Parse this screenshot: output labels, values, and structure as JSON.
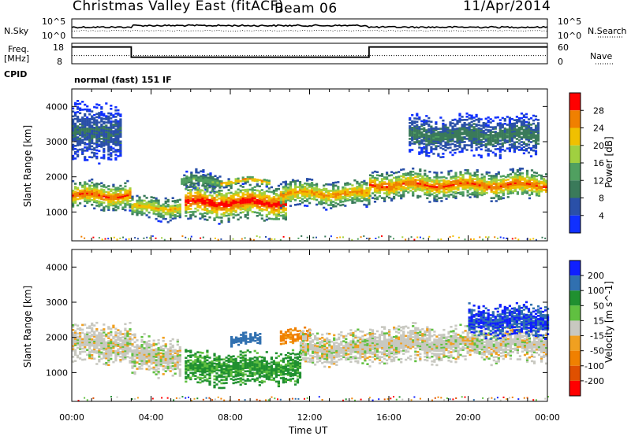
{
  "header": {
    "site_title": "Christmas Valley East (fitACF)",
    "beam": "Beam 06",
    "date": "11/Apr/2014"
  },
  "strip_panels": {
    "nsky_label": "N.Sky",
    "nsearch_label": "N.Search",
    "freq_label_line1": "Freq.",
    "freq_label_line2": "[MHz]",
    "nave_label": "Nave",
    "cpid_label": "CPID",
    "cpid_value": "normal (fast) 151 IF",
    "noise_ticks": [
      "10^5",
      "10^0"
    ],
    "freq_ticks": [
      "18",
      "8"
    ],
    "nave_ticks": [
      "60",
      "0"
    ],
    "freq_series": [
      {
        "t": 0.0,
        "f": 16.0
      },
      {
        "t": 3.0,
        "f": 16.0
      },
      {
        "t": 3.0,
        "f": 10.5
      },
      {
        "t": 15.0,
        "f": 10.5
      },
      {
        "t": 15.0,
        "f": 16.0
      },
      {
        "t": 24.0,
        "f": 16.0
      }
    ],
    "nave_series_level": 24
  },
  "time_axis": {
    "label": "Time UT",
    "ticks": [
      "00:00",
      "04:00",
      "08:00",
      "12:00",
      "16:00",
      "20:00",
      "00:00"
    ],
    "range_hours": [
      0,
      24
    ]
  },
  "chart_data": [
    {
      "type": "heatmap",
      "quantity": "Power",
      "ylabel": "Slant Range [km]",
      "xlabel": "Time UT",
      "ylim": [
        180,
        4500
      ],
      "yticks": [
        "1000",
        "2000",
        "3000",
        "4000"
      ],
      "colorbar_label": "Power [dB]",
      "colorbar_ticks": [
        "28",
        "24",
        "20",
        "16",
        "12",
        "8",
        "4"
      ],
      "colorbar_range": [
        0,
        30
      ],
      "colors": [
        "#1030ff",
        "#2a50a8",
        "#3a7a5a",
        "#50a060",
        "#a0d040",
        "#f0c000",
        "#f08000",
        "#ff0000"
      ],
      "scatter_bands": [
        {
          "t0": 0.0,
          "t1": 3.0,
          "r_center": 1500,
          "r_width": 450,
          "peak_db": 26
        },
        {
          "t0": 3.0,
          "t1": 5.5,
          "r_center": 1150,
          "r_width": 350,
          "peak_db": 22
        },
        {
          "t0": 5.5,
          "t1": 7.5,
          "r_center": 1900,
          "r_width": 300,
          "peak_db": 14
        },
        {
          "t0": 5.7,
          "t1": 10.8,
          "r_center": 1300,
          "r_width": 550,
          "peak_db": 29
        },
        {
          "t0": 7.5,
          "t1": 10.0,
          "r_center": 1900,
          "r_width": 120,
          "peak_db": 24
        },
        {
          "t0": 10.5,
          "t1": 15.0,
          "r_center": 1550,
          "r_width": 400,
          "peak_db": 24
        },
        {
          "t0": 15.0,
          "t1": 24.0,
          "r_center": 1800,
          "r_width": 450,
          "peak_db": 26
        },
        {
          "t0": 0.0,
          "t1": 2.5,
          "r_center": 3300,
          "r_width": 900,
          "peak_db": 8
        },
        {
          "t0": 17.0,
          "t1": 23.5,
          "r_center": 3200,
          "r_width": 600,
          "peak_db": 10
        }
      ]
    },
    {
      "type": "heatmap",
      "quantity": "Velocity",
      "ylabel": "Slant Range [km]",
      "xlabel": "Time UT",
      "ylim": [
        180,
        4500
      ],
      "yticks": [
        "1000",
        "2000",
        "3000",
        "4000"
      ],
      "colorbar_label": "Velocity [m s^-1]",
      "colorbar_ticks": [
        "200",
        "100",
        "50",
        "15",
        "-15",
        "-50",
        "-100",
        "-200"
      ],
      "colorbar_range": [
        -250,
        250
      ],
      "colors": [
        "#ff0000",
        "#e05000",
        "#f08000",
        "#f0a020",
        "#c8c8c0",
        "#60c040",
        "#209030",
        "#3070b0",
        "#1020ff"
      ],
      "scatter_bands": [
        {
          "t0": 0.0,
          "t1": 3.0,
          "r_center": 1850,
          "r_width": 600,
          "velocity": 0
        },
        {
          "t0": 3.0,
          "t1": 5.5,
          "r_center": 1500,
          "r_width": 600,
          "velocity": 0
        },
        {
          "t0": 5.7,
          "t1": 11.5,
          "r_center": 1150,
          "r_width": 500,
          "velocity": 60
        },
        {
          "t0": 8.0,
          "t1": 9.5,
          "r_center": 1950,
          "r_width": 200,
          "velocity": 180
        },
        {
          "t0": 10.5,
          "t1": 12.0,
          "r_center": 2050,
          "r_width": 250,
          "velocity": -60
        },
        {
          "t0": 11.5,
          "t1": 15.0,
          "r_center": 1700,
          "r_width": 500,
          "velocity": 0
        },
        {
          "t0": 15.0,
          "t1": 24.0,
          "r_center": 1850,
          "r_width": 550,
          "velocity": 0
        },
        {
          "t0": 20.0,
          "t1": 24.0,
          "r_center": 2500,
          "r_width": 500,
          "velocity": 200
        }
      ]
    }
  ]
}
